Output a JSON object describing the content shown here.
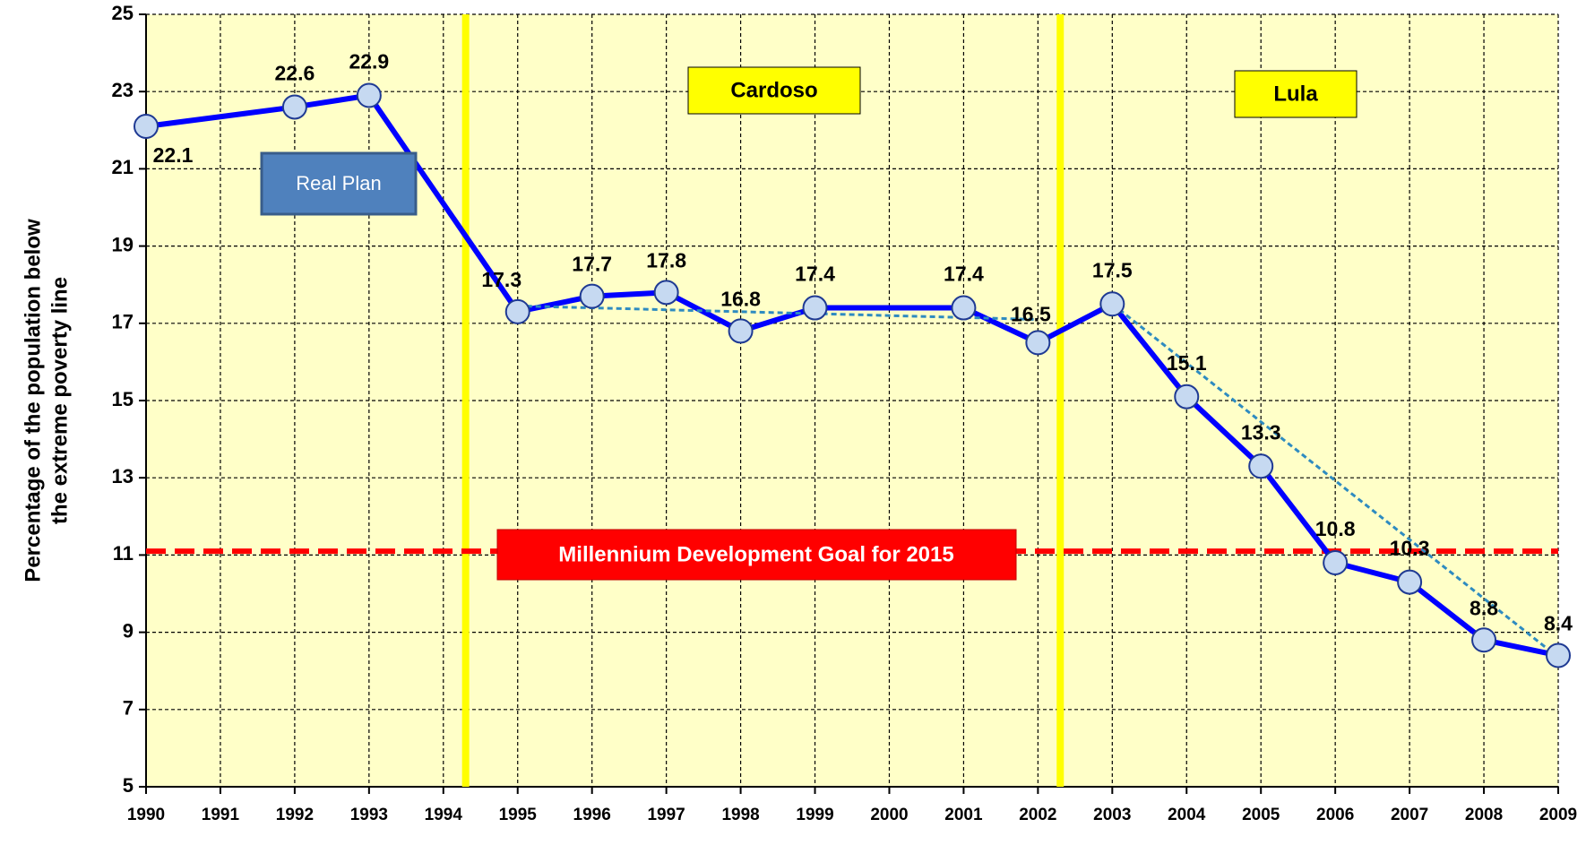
{
  "chart_data": {
    "type": "line",
    "y_label_lines": [
      "Percentage of the population below",
      "the extreme poverty line"
    ],
    "x": [
      1990,
      1992,
      1993,
      1995,
      1996,
      1997,
      1998,
      1999,
      2001,
      2002,
      2003,
      2004,
      2005,
      2006,
      2007,
      2008,
      2009
    ],
    "series": [
      {
        "color": "#0000ff",
        "values": [
          22.1,
          22.6,
          22.9,
          17.3,
          17.7,
          17.8,
          16.8,
          17.4,
          17.4,
          16.5,
          17.5,
          15.1,
          13.3,
          10.8,
          10.3,
          8.8,
          8.4
        ]
      }
    ],
    "trend": [
      {
        "x": [
          1995,
          2002
        ],
        "values": [
          17.45,
          17.1
        ]
      },
      {
        "x": [
          2003,
          2009
        ],
        "values": [
          17.5,
          8.35
        ]
      }
    ],
    "xlim": [
      1990,
      2009
    ],
    "xticks": [
      1990,
      1991,
      1992,
      1993,
      1994,
      1995,
      1996,
      1997,
      1998,
      1999,
      2000,
      2001,
      2002,
      2003,
      2004,
      2005,
      2006,
      2007,
      2008,
      2009
    ],
    "ylim": [
      5,
      25
    ],
    "yticks": [
      5,
      7,
      9,
      11,
      13,
      15,
      17,
      19,
      21,
      23,
      25
    ],
    "grid": true,
    "vlines": [
      1994.3,
      2002.3
    ],
    "goal_line": 11.1,
    "annotations": {
      "cardoso": "Cardoso",
      "lula": "Lula",
      "real_plan": "Real Plan",
      "goal": "Millennium Development Goal  for 2015"
    }
  }
}
